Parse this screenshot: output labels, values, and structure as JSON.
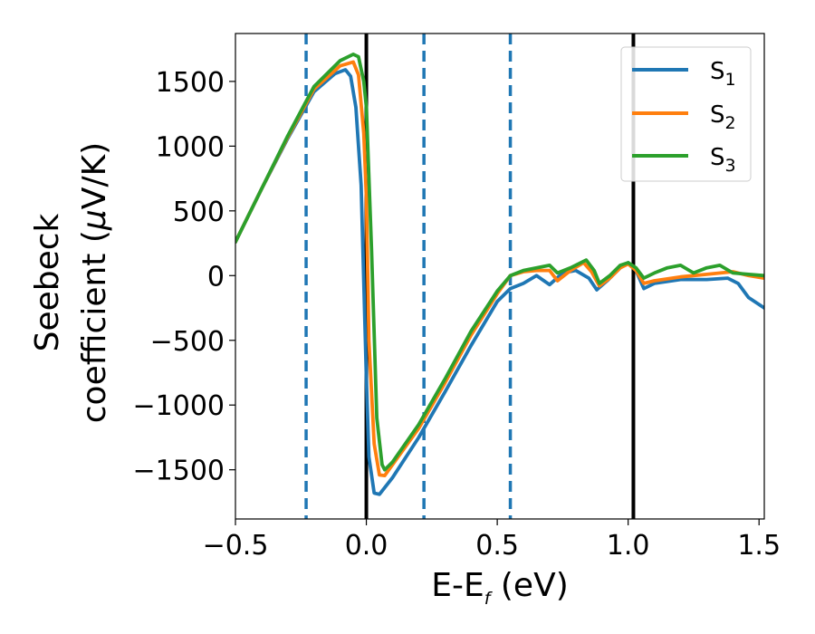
{
  "chart_data": {
    "type": "line",
    "xlabel": {
      "main": "E-E",
      "sub": "f",
      "unit": " (eV)"
    },
    "ylabel": {
      "line1": "Seebeck",
      "line2_pre": "coefficient  (",
      "mu": "μ",
      "line2_post": "V/K)"
    },
    "xlim": [
      -0.5,
      1.52
    ],
    "ylim": [
      -1880,
      1870
    ],
    "xticks": [
      -0.5,
      0.0,
      0.5,
      1.0,
      1.5
    ],
    "xtick_labels": [
      "−0.5",
      "0.0",
      "0.5",
      "1.0",
      "1.5"
    ],
    "yticks": [
      -1500,
      -1000,
      -500,
      0,
      500,
      1000,
      1500
    ],
    "ytick_labels": [
      "−1500",
      "−1000",
      "−500",
      "0",
      "500",
      "1000",
      "1500"
    ],
    "legend_placement": "top-right",
    "grid": false,
    "series": [
      {
        "name": "S",
        "sub": "1",
        "color": "#1f77b4",
        "points": [
          [
            -0.5,
            260
          ],
          [
            -0.4,
            670
          ],
          [
            -0.3,
            1060
          ],
          [
            -0.2,
            1420
          ],
          [
            -0.12,
            1560
          ],
          [
            -0.08,
            1590
          ],
          [
            -0.06,
            1540
          ],
          [
            -0.04,
            1300
          ],
          [
            -0.02,
            700
          ],
          [
            0.0,
            -800
          ],
          [
            0.01,
            -1400
          ],
          [
            0.03,
            -1680
          ],
          [
            0.05,
            -1690
          ],
          [
            0.1,
            -1560
          ],
          [
            0.2,
            -1250
          ],
          [
            0.3,
            -900
          ],
          [
            0.4,
            -540
          ],
          [
            0.5,
            -200
          ],
          [
            0.55,
            -100
          ],
          [
            0.6,
            -60
          ],
          [
            0.65,
            0
          ],
          [
            0.7,
            -70
          ],
          [
            0.75,
            20
          ],
          [
            0.8,
            40
          ],
          [
            0.85,
            -20
          ],
          [
            0.88,
            -110
          ],
          [
            0.92,
            -40
          ],
          [
            0.97,
            60
          ],
          [
            1.0,
            100
          ],
          [
            1.03,
            40
          ],
          [
            1.06,
            -100
          ],
          [
            1.1,
            -60
          ],
          [
            1.2,
            -30
          ],
          [
            1.3,
            -30
          ],
          [
            1.38,
            -20
          ],
          [
            1.42,
            -60
          ],
          [
            1.46,
            -170
          ],
          [
            1.52,
            -250
          ]
        ]
      },
      {
        "name": "S",
        "sub": "2",
        "color": "#ff7f0e",
        "points": [
          [
            -0.5,
            260
          ],
          [
            -0.4,
            670
          ],
          [
            -0.3,
            1070
          ],
          [
            -0.2,
            1440
          ],
          [
            -0.1,
            1620
          ],
          [
            -0.05,
            1650
          ],
          [
            -0.03,
            1550
          ],
          [
            -0.01,
            1100
          ],
          [
            0.0,
            600
          ],
          [
            0.01,
            -500
          ],
          [
            0.03,
            -1300
          ],
          [
            0.05,
            -1540
          ],
          [
            0.07,
            -1545
          ],
          [
            0.1,
            -1460
          ],
          [
            0.2,
            -1180
          ],
          [
            0.3,
            -830
          ],
          [
            0.4,
            -460
          ],
          [
            0.5,
            -140
          ],
          [
            0.55,
            0
          ],
          [
            0.6,
            30
          ],
          [
            0.65,
            40
          ],
          [
            0.7,
            40
          ],
          [
            0.73,
            -40
          ],
          [
            0.78,
            40
          ],
          [
            0.83,
            100
          ],
          [
            0.86,
            30
          ],
          [
            0.89,
            -80
          ],
          [
            0.93,
            -20
          ],
          [
            0.97,
            60
          ],
          [
            1.0,
            90
          ],
          [
            1.03,
            40
          ],
          [
            1.06,
            -60
          ],
          [
            1.1,
            -40
          ],
          [
            1.2,
            -10
          ],
          [
            1.3,
            10
          ],
          [
            1.4,
            30
          ],
          [
            1.46,
            0
          ],
          [
            1.52,
            -20
          ]
        ]
      },
      {
        "name": "S",
        "sub": "3",
        "color": "#2ca02c",
        "points": [
          [
            -0.5,
            260
          ],
          [
            -0.4,
            670
          ],
          [
            -0.3,
            1080
          ],
          [
            -0.2,
            1460
          ],
          [
            -0.1,
            1660
          ],
          [
            -0.05,
            1710
          ],
          [
            -0.03,
            1690
          ],
          [
            -0.01,
            1500
          ],
          [
            0.0,
            1300
          ],
          [
            0.02,
            200
          ],
          [
            0.04,
            -1100
          ],
          [
            0.06,
            -1460
          ],
          [
            0.07,
            -1500
          ],
          [
            0.1,
            -1440
          ],
          [
            0.2,
            -1150
          ],
          [
            0.3,
            -800
          ],
          [
            0.4,
            -430
          ],
          [
            0.5,
            -120
          ],
          [
            0.55,
            0
          ],
          [
            0.6,
            40
          ],
          [
            0.65,
            60
          ],
          [
            0.7,
            80
          ],
          [
            0.73,
            20
          ],
          [
            0.78,
            60
          ],
          [
            0.84,
            120
          ],
          [
            0.87,
            40
          ],
          [
            0.89,
            -60
          ],
          [
            0.93,
            0
          ],
          [
            0.97,
            80
          ],
          [
            1.0,
            100
          ],
          [
            1.03,
            60
          ],
          [
            1.06,
            -20
          ],
          [
            1.1,
            20
          ],
          [
            1.15,
            60
          ],
          [
            1.2,
            80
          ],
          [
            1.25,
            20
          ],
          [
            1.3,
            60
          ],
          [
            1.35,
            80
          ],
          [
            1.4,
            20
          ],
          [
            1.46,
            10
          ],
          [
            1.52,
            0
          ]
        ]
      }
    ],
    "vertical_lines": [
      {
        "x": -0.23,
        "style": "dashed",
        "color": "#1f77b4"
      },
      {
        "x": 0.0,
        "style": "solid",
        "color": "#000000"
      },
      {
        "x": 0.22,
        "style": "dashed",
        "color": "#1f77b4"
      },
      {
        "x": 0.55,
        "style": "dashed",
        "color": "#1f77b4"
      },
      {
        "x": 1.02,
        "style": "solid",
        "color": "#000000"
      }
    ]
  }
}
